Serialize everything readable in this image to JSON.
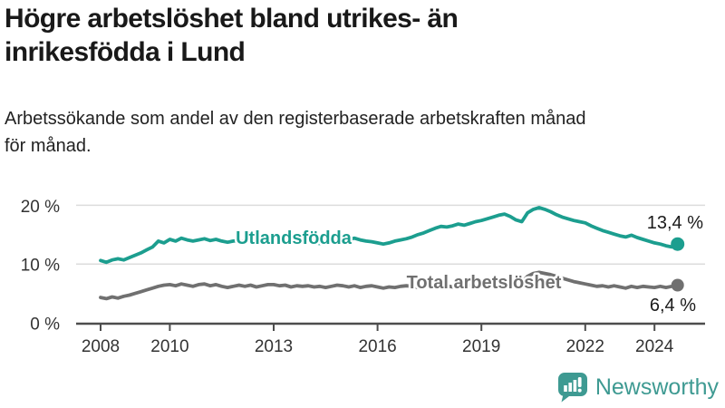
{
  "header": {
    "title_lines": [
      "Högre arbetslöshet bland utrikes- än",
      "inrikesfödda i Lund"
    ],
    "subtitle_lines": [
      "Arbetssökande som andel av den registerbaserade arbetskraften månad",
      "för månad."
    ]
  },
  "footer": {
    "brand": "Newsworthy",
    "brand_color": "#3E9A92",
    "logo_icon": "speech-bubble-bar-chart-icon"
  },
  "chart_data": {
    "type": "line",
    "title": "Högre arbetslöshet bland utrikes- än inrikesfödda i Lund",
    "subtitle": "Arbetssökande som andel av den registerbaserade arbetskraften månad för månad.",
    "grid": "horizontal",
    "legend_position": "inline-labels",
    "ylim": [
      0,
      22
    ],
    "yticks": [
      {
        "label": "20 %",
        "value": 20
      },
      {
        "label": "10 %",
        "value": 10
      },
      {
        "label": "0 %",
        "value": 0
      }
    ],
    "xticks": [
      {
        "label": "2008",
        "value": 2008
      },
      {
        "label": "2010",
        "value": 2010
      },
      {
        "label": "2013",
        "value": 2013
      },
      {
        "label": "2016",
        "value": 2016
      },
      {
        "label": "2019",
        "value": 2019
      },
      {
        "label": "2022",
        "value": 2022
      },
      {
        "label": "2024",
        "value": 2024
      }
    ],
    "series": [
      {
        "name": "Utlandsfödda",
        "color": "#1C9E8F",
        "end_label": "13,4 %",
        "end_value": 13.4,
        "x_start": 2008,
        "x_step_years": 0.16667,
        "values": [
          10.6,
          10.3,
          10.7,
          10.9,
          10.7,
          11.1,
          11.5,
          11.9,
          12.4,
          12.9,
          13.9,
          13.6,
          14.2,
          13.9,
          14.4,
          14.1,
          13.9,
          14.1,
          14.3,
          14.0,
          14.2,
          13.9,
          13.7,
          13.9,
          14.0,
          13.8,
          13.9,
          13.7,
          13.8,
          14.0,
          14.1,
          13.9,
          13.8,
          13.7,
          13.8,
          13.7,
          13.8,
          13.6,
          13.5,
          13.4,
          13.6,
          13.8,
          14.0,
          14.2,
          14.4,
          14.1,
          13.9,
          13.8,
          13.6,
          13.4,
          13.6,
          13.9,
          14.1,
          14.3,
          14.6,
          15.0,
          15.3,
          15.7,
          16.1,
          16.4,
          16.3,
          16.5,
          16.8,
          16.6,
          16.9,
          17.2,
          17.4,
          17.7,
          18.0,
          18.3,
          18.5,
          18.1,
          17.5,
          17.2,
          18.7,
          19.3,
          19.6,
          19.3,
          18.9,
          18.4,
          18.0,
          17.7,
          17.4,
          17.2,
          17.0,
          16.5,
          16.1,
          15.7,
          15.4,
          15.1,
          14.8,
          14.6,
          14.9,
          14.5,
          14.2,
          13.9,
          13.6,
          13.4,
          13.1,
          12.9,
          13.4
        ]
      },
      {
        "name": "Total arbetslöshet",
        "color": "#707070",
        "end_label": "6,4 %",
        "end_value": 6.4,
        "x_start": 2008,
        "x_step_years": 0.16667,
        "values": [
          4.3,
          4.1,
          4.4,
          4.2,
          4.5,
          4.7,
          5.0,
          5.3,
          5.6,
          5.9,
          6.2,
          6.4,
          6.5,
          6.3,
          6.6,
          6.4,
          6.2,
          6.5,
          6.6,
          6.3,
          6.5,
          6.2,
          6.0,
          6.2,
          6.4,
          6.2,
          6.4,
          6.1,
          6.3,
          6.5,
          6.5,
          6.3,
          6.4,
          6.1,
          6.3,
          6.2,
          6.3,
          6.1,
          6.2,
          6.0,
          6.2,
          6.4,
          6.3,
          6.1,
          6.3,
          6.0,
          6.2,
          6.3,
          6.1,
          5.9,
          6.1,
          6.0,
          6.2,
          6.3,
          6.2,
          6.0,
          6.2,
          6.1,
          6.3,
          6.4,
          6.3,
          6.1,
          6.3,
          6.2,
          6.4,
          6.5,
          6.4,
          6.2,
          6.5,
          6.4,
          6.6,
          6.5,
          6.6,
          6.9,
          7.9,
          8.4,
          8.6,
          8.4,
          8.2,
          7.9,
          7.6,
          7.3,
          7.0,
          6.8,
          6.6,
          6.4,
          6.2,
          6.3,
          6.1,
          6.3,
          6.1,
          5.9,
          6.2,
          6.0,
          6.2,
          6.1,
          6.0,
          6.2,
          6.0,
          6.2,
          6.4
        ]
      }
    ]
  }
}
